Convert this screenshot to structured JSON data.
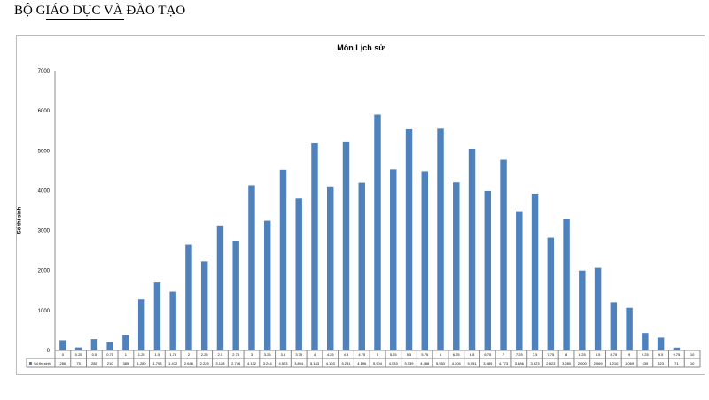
{
  "header": {
    "title": "BỘ GIÁO DỤC VÀ ĐÀO TẠO"
  },
  "chart_data": {
    "type": "bar",
    "title": "Môn Lịch sử",
    "xlabel": "",
    "ylabel": "Số thí sinh",
    "ylim": [
      0,
      7000
    ],
    "yticks": [
      0,
      1000,
      2000,
      3000,
      4000,
      5000,
      6000,
      7000
    ],
    "grid": false,
    "legend": "data-table",
    "color": "#4f81bd",
    "categories": [
      "0",
      "0.25",
      "0.5",
      "0.75",
      "1",
      "1.25",
      "1.5",
      "1.75",
      "2",
      "2.25",
      "2.5",
      "2.75",
      "3",
      "3.25",
      "3.5",
      "3.75",
      "4",
      "4.25",
      "4.5",
      "4.75",
      "5",
      "5.25",
      "5.5",
      "5.75",
      "6",
      "6.25",
      "6.5",
      "6.75",
      "7",
      "7.25",
      "7.5",
      "7.75",
      "8",
      "8.25",
      "8.5",
      "8.75",
      "9",
      "9.25",
      "9.5",
      "9.75",
      "10"
    ],
    "series": [
      {
        "name": "Số thí sinh",
        "values": [
          256,
          75,
          285,
          210,
          385,
          1280,
          1703,
          1472,
          2646,
          2229,
          3128,
          2746,
          4132,
          3244,
          4523,
          3804,
          5183,
          4103,
          5231,
          4196,
          5904,
          4533,
          5539,
          4488,
          5553,
          4204,
          5051,
          3989,
          4773,
          3486,
          3923,
          2823,
          3280,
          2000,
          2069,
          1210,
          1069,
          439,
          323,
          71,
          10
        ]
      }
    ]
  }
}
